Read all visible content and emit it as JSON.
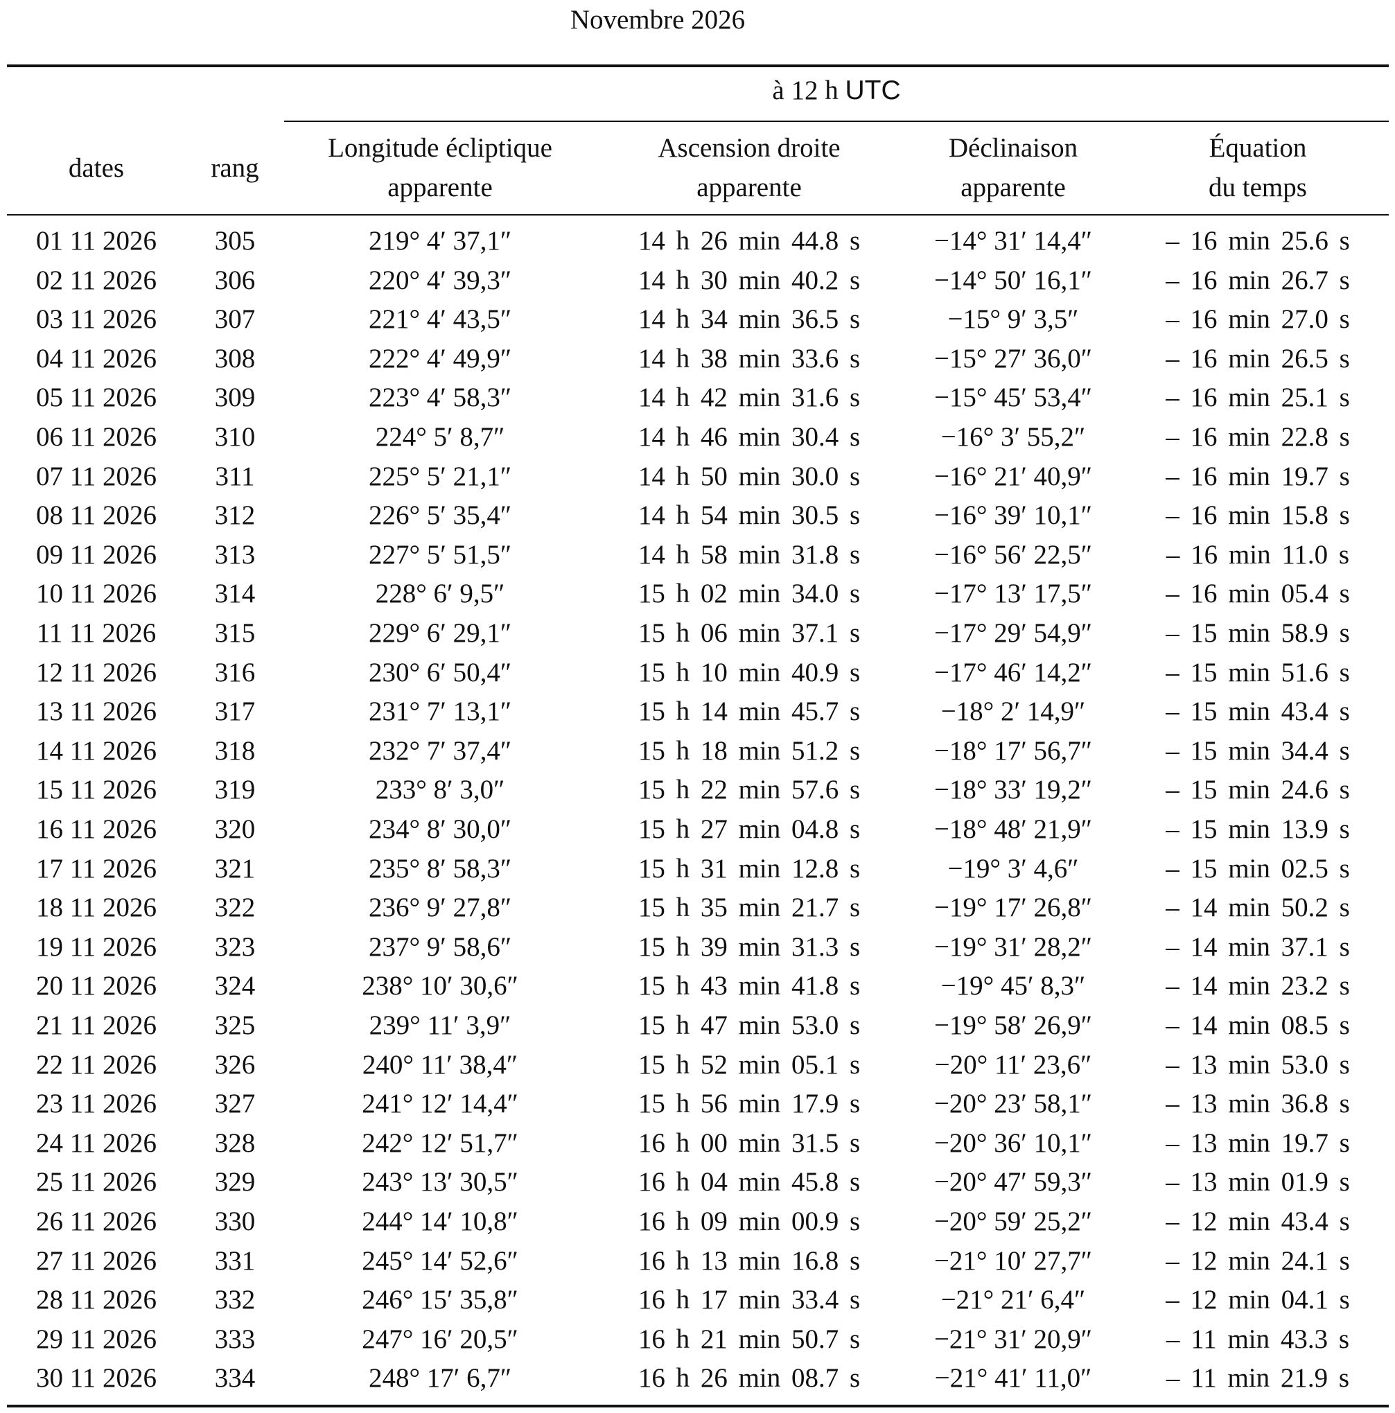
{
  "title": "Novembre 2026",
  "header": {
    "group": "à 12 h",
    "group_unit": "UTC",
    "dates": "dates",
    "rang": "rang",
    "longitude": [
      "Longitude écliptique",
      "apparente"
    ],
    "ascension": [
      "Ascension droite",
      "apparente"
    ],
    "declinaison": [
      "Déclinaison",
      "apparente"
    ],
    "equation": [
      "Équation",
      "du temps"
    ]
  },
  "rows": [
    [
      "01 11 2026",
      "305",
      "219° 4′ 37,1″",
      "14 h 26 min 44.8 s",
      "−14° 31′ 14,4″",
      "– 16 min 25.6 s"
    ],
    [
      "02 11 2026",
      "306",
      "220° 4′ 39,3″",
      "14 h 30 min 40.2 s",
      "−14° 50′ 16,1″",
      "– 16 min 26.7 s"
    ],
    [
      "03 11 2026",
      "307",
      "221° 4′ 43,5″",
      "14 h 34 min 36.5 s",
      "−15° 9′ 3,5″",
      "– 16 min 27.0 s"
    ],
    [
      "04 11 2026",
      "308",
      "222° 4′ 49,9″",
      "14 h 38 min 33.6 s",
      "−15° 27′ 36,0″",
      "– 16 min 26.5 s"
    ],
    [
      "05 11 2026",
      "309",
      "223° 4′ 58,3″",
      "14 h 42 min 31.6 s",
      "−15° 45′ 53,4″",
      "– 16 min 25.1 s"
    ],
    [
      "06 11 2026",
      "310",
      "224° 5′ 8,7″",
      "14 h 46 min 30.4 s",
      "−16° 3′ 55,2″",
      "– 16 min 22.8 s"
    ],
    [
      "07 11 2026",
      "311",
      "225° 5′ 21,1″",
      "14 h 50 min 30.0 s",
      "−16° 21′ 40,9″",
      "– 16 min 19.7 s"
    ],
    [
      "08 11 2026",
      "312",
      "226° 5′ 35,4″",
      "14 h 54 min 30.5 s",
      "−16° 39′ 10,1″",
      "– 16 min 15.8 s"
    ],
    [
      "09 11 2026",
      "313",
      "227° 5′ 51,5″",
      "14 h 58 min 31.8 s",
      "−16° 56′ 22,5″",
      "– 16 min 11.0 s"
    ],
    [
      "10 11 2026",
      "314",
      "228° 6′ 9,5″",
      "15 h 02 min 34.0 s",
      "−17° 13′ 17,5″",
      "– 16 min 05.4 s"
    ],
    [
      "11 11 2026",
      "315",
      "229° 6′ 29,1″",
      "15 h 06 min 37.1 s",
      "−17° 29′ 54,9″",
      "– 15 min 58.9 s"
    ],
    [
      "12 11 2026",
      "316",
      "230° 6′ 50,4″",
      "15 h 10 min 40.9 s",
      "−17° 46′ 14,2″",
      "– 15 min 51.6 s"
    ],
    [
      "13 11 2026",
      "317",
      "231° 7′ 13,1″",
      "15 h 14 min 45.7 s",
      "−18° 2′ 14,9″",
      "– 15 min 43.4 s"
    ],
    [
      "14 11 2026",
      "318",
      "232° 7′ 37,4″",
      "15 h 18 min 51.2 s",
      "−18° 17′ 56,7″",
      "– 15 min 34.4 s"
    ],
    [
      "15 11 2026",
      "319",
      "233° 8′ 3,0″",
      "15 h 22 min 57.6 s",
      "−18° 33′ 19,2″",
      "– 15 min 24.6 s"
    ],
    [
      "16 11 2026",
      "320",
      "234° 8′ 30,0″",
      "15 h 27 min 04.8 s",
      "−18° 48′ 21,9″",
      "– 15 min 13.9 s"
    ],
    [
      "17 11 2026",
      "321",
      "235° 8′ 58,3″",
      "15 h 31 min 12.8 s",
      "−19° 3′ 4,6″",
      "– 15 min 02.5 s"
    ],
    [
      "18 11 2026",
      "322",
      "236° 9′ 27,8″",
      "15 h 35 min 21.7 s",
      "−19° 17′ 26,8″",
      "– 14 min 50.2 s"
    ],
    [
      "19 11 2026",
      "323",
      "237° 9′ 58,6″",
      "15 h 39 min 31.3 s",
      "−19° 31′ 28,2″",
      "– 14 min 37.1 s"
    ],
    [
      "20 11 2026",
      "324",
      "238° 10′ 30,6″",
      "15 h 43 min 41.8 s",
      "−19° 45′ 8,3″",
      "– 14 min 23.2 s"
    ],
    [
      "21 11 2026",
      "325",
      "239° 11′ 3,9″",
      "15 h 47 min 53.0 s",
      "−19° 58′ 26,9″",
      "– 14 min 08.5 s"
    ],
    [
      "22 11 2026",
      "326",
      "240° 11′ 38,4″",
      "15 h 52 min 05.1 s",
      "−20° 11′ 23,6″",
      "– 13 min 53.0 s"
    ],
    [
      "23 11 2026",
      "327",
      "241° 12′ 14,4″",
      "15 h 56 min 17.9 s",
      "−20° 23′ 58,1″",
      "– 13 min 36.8 s"
    ],
    [
      "24 11 2026",
      "328",
      "242° 12′ 51,7″",
      "16 h 00 min 31.5 s",
      "−20° 36′ 10,1″",
      "– 13 min 19.7 s"
    ],
    [
      "25 11 2026",
      "329",
      "243° 13′ 30,5″",
      "16 h 04 min 45.8 s",
      "−20° 47′ 59,3″",
      "– 13 min 01.9 s"
    ],
    [
      "26 11 2026",
      "330",
      "244° 14′ 10,8″",
      "16 h 09 min 00.9 s",
      "−20° 59′ 25,2″",
      "– 12 min 43.4 s"
    ],
    [
      "27 11 2026",
      "331",
      "245° 14′ 52,6″",
      "16 h 13 min 16.8 s",
      "−21° 10′ 27,7″",
      "– 12 min 24.1 s"
    ],
    [
      "28 11 2026",
      "332",
      "246° 15′ 35,8″",
      "16 h 17 min 33.4 s",
      "−21° 21′ 6,4″",
      "– 12 min 04.1 s"
    ],
    [
      "29 11 2026",
      "333",
      "247° 16′ 20,5″",
      "16 h 21 min 50.7 s",
      "−21° 31′ 20,9″",
      "– 11 min 43.3 s"
    ],
    [
      "30 11 2026",
      "334",
      "248° 17′ 6,7″",
      "16 h 26 min 08.7 s",
      "−21° 41′ 11,0″",
      "– 11 min 21.9 s"
    ]
  ]
}
